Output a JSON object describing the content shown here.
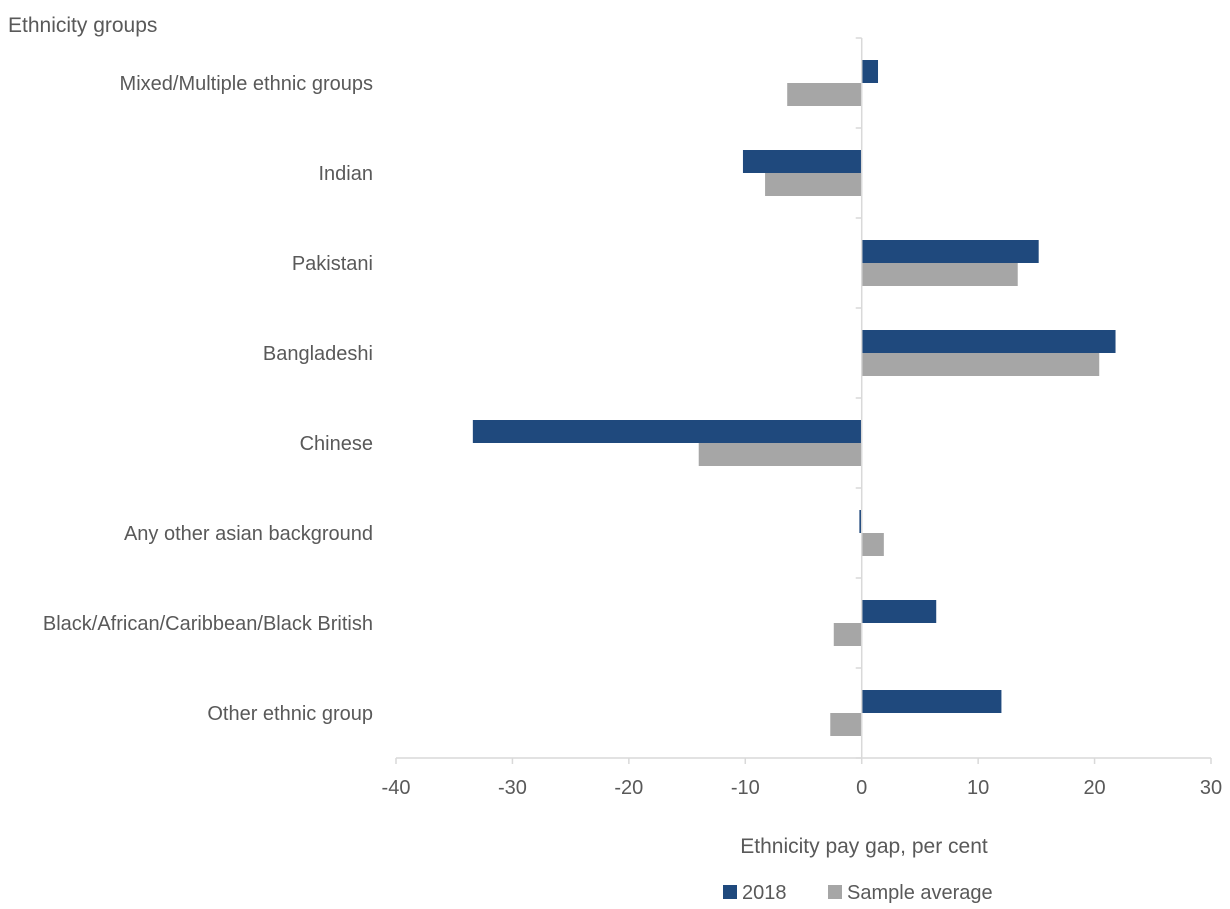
{
  "chart_data": {
    "type": "bar",
    "orientation": "horizontal",
    "title": "",
    "ylabel": "Ethnicity groups",
    "xlabel": "Ethnicity pay gap, per cent",
    "categories": [
      "Mixed/Multiple ethnic groups",
      "Indian",
      "Pakistani",
      "Bangladeshi",
      "Chinese",
      "Any other asian background",
      "Black/African/Caribbean/Black British",
      "Other ethnic group"
    ],
    "series": [
      {
        "name": "2018",
        "color": "#1f497d",
        "values": [
          1.4,
          -10.2,
          15.2,
          21.8,
          -33.4,
          -0.2,
          6.4,
          12.0
        ]
      },
      {
        "name": "Sample average",
        "color": "#a6a6a6",
        "values": [
          -6.4,
          -8.3,
          13.4,
          20.4,
          -14.0,
          1.9,
          -2.4,
          -2.7
        ]
      }
    ],
    "xlim": [
      -40,
      30
    ],
    "xticks": [
      "-40",
      "-30",
      "-20",
      "-10",
      "0",
      "10",
      "20",
      "30"
    ],
    "grid": false,
    "legend_position": "bottom"
  }
}
